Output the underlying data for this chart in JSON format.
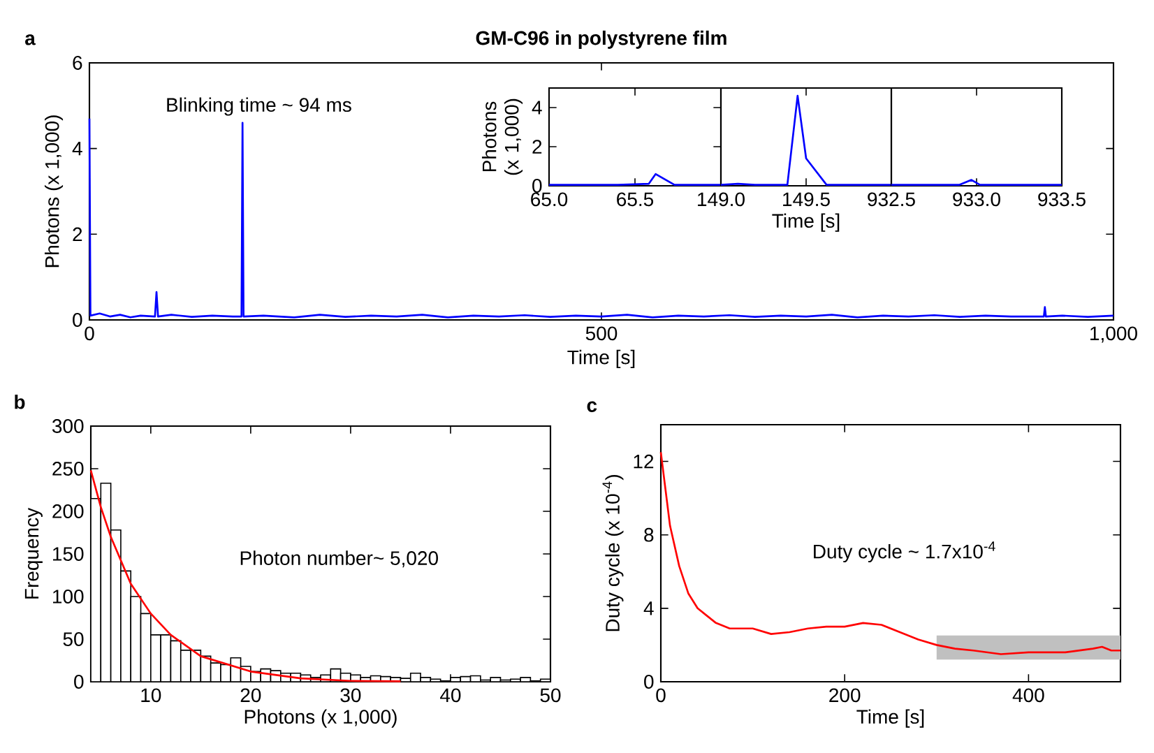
{
  "chart_data": [
    {
      "type": "line",
      "title": "GM-C96 in polystyrene film",
      "xlabel": "Time [s]",
      "ylabel": "Photons (x 1,000)",
      "color": "#0000ff",
      "xlim": [
        0,
        1000
      ],
      "ylim": [
        0,
        6
      ],
      "xticks": [
        0,
        500,
        {
          "value": 1000,
          "label": "1,000"
        }
      ],
      "yticks": [
        0,
        2,
        4,
        6
      ],
      "annotations": [
        "a",
        "Blinking time ~ 94 ms"
      ],
      "x": [
        0,
        1,
        10,
        20,
        30,
        40,
        50,
        64,
        65.5,
        67,
        80,
        100,
        120,
        140,
        148.5,
        149.5,
        150.5,
        170,
        200,
        225,
        250,
        275,
        300,
        325,
        350,
        375,
        400,
        425,
        450,
        475,
        500,
        525,
        550,
        575,
        600,
        625,
        650,
        675,
        700,
        725,
        750,
        775,
        800,
        825,
        850,
        875,
        900,
        932,
        933,
        934,
        950,
        975,
        1000
      ],
      "values": [
        4.7,
        0.1,
        0.15,
        0.08,
        0.12,
        0.06,
        0.1,
        0.08,
        0.65,
        0.08,
        0.12,
        0.07,
        0.1,
        0.08,
        0.08,
        4.6,
        0.08,
        0.1,
        0.06,
        0.12,
        0.07,
        0.1,
        0.08,
        0.12,
        0.06,
        0.1,
        0.08,
        0.11,
        0.07,
        0.1,
        0.08,
        0.12,
        0.06,
        0.1,
        0.08,
        0.11,
        0.07,
        0.1,
        0.08,
        0.12,
        0.06,
        0.1,
        0.08,
        0.11,
        0.07,
        0.1,
        0.08,
        0.08,
        0.3,
        0.08,
        0.1,
        0.07,
        0.1
      ]
    },
    {
      "type": "line",
      "ylabel": "Photons (x 1,000)",
      "color": "#0000ff",
      "xlim": [
        65,
        66
      ],
      "ylim": [
        0,
        5
      ],
      "xticks": [
        {
          "value": 65,
          "label": "65.0"
        },
        65.5
      ],
      "yticks": [
        0,
        2,
        4
      ],
      "x": [
        65,
        65.2,
        65.4,
        65.58,
        65.62,
        65.73,
        65.9,
        66
      ],
      "values": [
        0.05,
        0.05,
        0.05,
        0.1,
        0.6,
        0.05,
        0.05,
        0.05
      ]
    },
    {
      "type": "line",
      "xlabel": "Time [s]",
      "color": "#0000ff",
      "xlim": [
        149,
        150
      ],
      "ylim": [
        0,
        5
      ],
      "tick_labels": "x",
      "xticks": [
        {
          "value": 149,
          "label": "149.0"
        },
        149.5
      ],
      "x": [
        149,
        149.1,
        149.2,
        149.39,
        149.45,
        149.5,
        149.62,
        149.8,
        150
      ],
      "values": [
        0.05,
        0.1,
        0.05,
        0.05,
        4.6,
        1.4,
        0.05,
        0.05,
        0.05
      ]
    },
    {
      "type": "line",
      "color": "#0000ff",
      "xlim": [
        932.5,
        933.5
      ],
      "ylim": [
        0,
        5
      ],
      "tick_labels": "x",
      "xticks": [
        932.5,
        {
          "value": 933,
          "label": "933.0"
        },
        933.5
      ],
      "x": [
        932.5,
        932.7,
        932.9,
        932.97,
        933.02,
        933.2,
        933.5
      ],
      "values": [
        0.05,
        0.05,
        0.05,
        0.3,
        0.05,
        0.05,
        0.05
      ]
    },
    {
      "type": "histogram",
      "xlabel": "Photons (x 1,000)",
      "ylabel": "Frequency",
      "color": "#ffffff",
      "xlim": [
        4,
        50
      ],
      "ylim": [
        0,
        300
      ],
      "xticks": [
        10,
        20,
        30,
        40,
        50
      ],
      "yticks": [
        0,
        50,
        100,
        150,
        200,
        250,
        300
      ],
      "annotations": [
        "b",
        "Photon number~ 5,020"
      ],
      "bins": [
        4,
        5,
        6,
        7,
        8,
        9,
        10,
        11,
        12,
        13,
        14,
        15,
        16,
        17,
        18,
        19,
        20,
        21,
        22,
        23,
        24,
        25,
        26,
        27,
        28,
        29,
        30,
        31,
        32,
        33,
        34,
        35,
        36,
        37,
        38,
        39,
        40,
        41,
        42,
        43,
        44,
        45,
        46,
        47,
        48,
        49,
        50
      ],
      "values": [
        215,
        233,
        178,
        130,
        100,
        80,
        55,
        55,
        48,
        37,
        37,
        30,
        22,
        20,
        28,
        18,
        12,
        15,
        13,
        10,
        10,
        8,
        5,
        8,
        15,
        10,
        8,
        5,
        7,
        6,
        5,
        4,
        10,
        5,
        3,
        1,
        5,
        6,
        7,
        2,
        5,
        2,
        3,
        5,
        1,
        3
      ],
      "series": [
        {
          "type": "line",
          "color": "#ff0000",
          "x": [
            4,
            5,
            6,
            8,
            10,
            12,
            15,
            20,
            25,
            30,
            35
          ],
          "values": [
            248,
            205,
            170,
            115,
            80,
            55,
            30,
            12,
            4,
            1,
            0.5
          ]
        }
      ]
    },
    {
      "type": "line",
      "xlabel": "Time [s]",
      "ylabel": "Duty cycle (x 10$^{-4}$)",
      "color": "#ff0000",
      "xlim": [
        0,
        500
      ],
      "ylim": [
        0,
        14
      ],
      "xticks": [
        0,
        200,
        400
      ],
      "yticks": [
        0,
        4,
        8,
        12
      ],
      "annotations": [
        "c",
        "Duty cycle ~ 1.7x10$^{-4}$"
      ],
      "bands": [
        {
          "axis": "x",
          "from": 300,
          "to": 500,
          "color": "#c0c0c0"
        }
      ],
      "x": [
        0,
        5,
        10,
        20,
        30,
        40,
        50,
        60,
        75,
        100,
        120,
        140,
        160,
        180,
        200,
        220,
        240,
        260,
        280,
        300,
        320,
        340,
        370,
        400,
        440,
        470,
        480,
        490,
        500
      ],
      "values": [
        12.5,
        10.5,
        8.5,
        6.3,
        4.8,
        4,
        3.6,
        3.2,
        2.9,
        2.9,
        2.6,
        2.7,
        2.9,
        3.0,
        3.0,
        3.2,
        3.1,
        2.7,
        2.3,
        2.0,
        1.8,
        1.7,
        1.5,
        1.6,
        1.6,
        1.8,
        1.9,
        1.7,
        1.7
      ]
    }
  ]
}
